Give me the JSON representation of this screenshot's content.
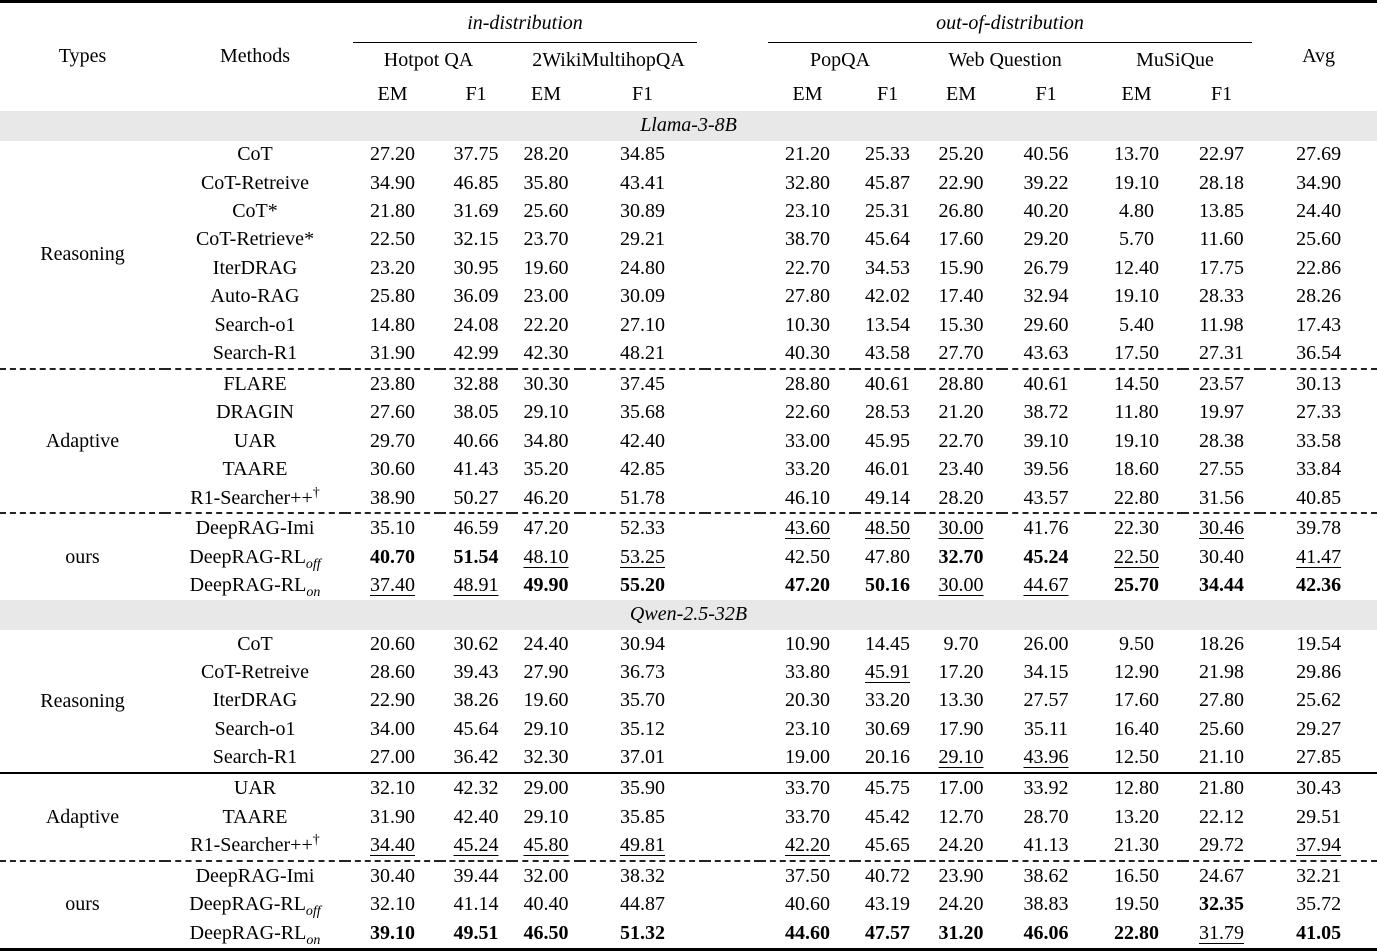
{
  "table": {
    "group_headers": {
      "in": "in-distribution",
      "out": "out-of-distribution"
    },
    "corner": {
      "types": "Types",
      "methods": "Methods",
      "avg": "Avg"
    },
    "datasets": [
      "Hotpot QA",
      "2WikiMultihopQA",
      "PopQA",
      "Web Question",
      "MuSiQue"
    ],
    "metrics": [
      "EM",
      "F1"
    ],
    "band_bg": "#e8e8e8",
    "sections": [
      {
        "model": "Llama-3-8B",
        "groups": [
          {
            "type": "Reasoning",
            "divider": null,
            "rows": [
              {
                "method": {
                  "name": "CoT"
                },
                "values": [
                  "27.20",
                  "37.75",
                  "28.20",
                  "34.85",
                  "21.20",
                  "25.33",
                  "25.20",
                  "40.56",
                  "13.70",
                  "22.97",
                  "27.69"
                ]
              },
              {
                "method": {
                  "name": "CoT-Retreive"
                },
                "values": [
                  "34.90",
                  "46.85",
                  "35.80",
                  "43.41",
                  "32.80",
                  "45.87",
                  "22.90",
                  "39.22",
                  "19.10",
                  "28.18",
                  "34.90"
                ]
              },
              {
                "method": {
                  "name": "CoT*"
                },
                "values": [
                  "21.80",
                  "31.69",
                  "25.60",
                  "30.89",
                  "23.10",
                  "25.31",
                  "26.80",
                  "40.20",
                  "4.80",
                  "13.85",
                  "24.40"
                ]
              },
              {
                "method": {
                  "name": "CoT-Retrieve*"
                },
                "values": [
                  "22.50",
                  "32.15",
                  "23.70",
                  "29.21",
                  "38.70",
                  "45.64",
                  "17.60",
                  "29.20",
                  "5.70",
                  "11.60",
                  "25.60"
                ]
              },
              {
                "method": {
                  "name": "IterDRAG"
                },
                "values": [
                  "23.20",
                  "30.95",
                  "19.60",
                  "24.80",
                  "22.70",
                  "34.53",
                  "15.90",
                  "26.79",
                  "12.40",
                  "17.75",
                  "22.86"
                ]
              },
              {
                "method": {
                  "name": "Auto-RAG"
                },
                "values": [
                  "25.80",
                  "36.09",
                  "23.00",
                  "30.09",
                  "27.80",
                  "42.02",
                  "17.40",
                  "32.94",
                  "19.10",
                  "28.33",
                  "28.26"
                ]
              },
              {
                "method": {
                  "name": "Search-o1"
                },
                "values": [
                  "14.80",
                  "24.08",
                  "22.20",
                  "27.10",
                  "10.30",
                  "13.54",
                  "15.30",
                  "29.60",
                  "5.40",
                  "11.98",
                  "17.43"
                ]
              },
              {
                "method": {
                  "name": "Search-R1"
                },
                "values": [
                  "31.90",
                  "42.99",
                  "42.30",
                  "48.21",
                  "40.30",
                  "43.58",
                  "27.70",
                  "43.63",
                  "17.50",
                  "27.31",
                  "36.54"
                ]
              }
            ]
          },
          {
            "type": "Adaptive",
            "divider": "dashed",
            "rows": [
              {
                "method": {
                  "name": "FLARE"
                },
                "values": [
                  "23.80",
                  "32.88",
                  "30.30",
                  "37.45",
                  "28.80",
                  "40.61",
                  "28.80",
                  "40.61",
                  "14.50",
                  "23.57",
                  "30.13"
                ]
              },
              {
                "method": {
                  "name": "DRAGIN"
                },
                "values": [
                  "27.60",
                  "38.05",
                  "29.10",
                  "35.68",
                  "22.60",
                  "28.53",
                  "21.20",
                  "38.72",
                  "11.80",
                  "19.97",
                  "27.33"
                ]
              },
              {
                "method": {
                  "name": "UAR"
                },
                "values": [
                  "29.70",
                  "40.66",
                  "34.80",
                  "42.40",
                  "33.00",
                  "45.95",
                  "22.70",
                  "39.10",
                  "19.10",
                  "28.38",
                  "33.58"
                ]
              },
              {
                "method": {
                  "name": "TAARE"
                },
                "values": [
                  "30.60",
                  "41.43",
                  "35.20",
                  "42.85",
                  "33.20",
                  "46.01",
                  "23.40",
                  "39.56",
                  "18.60",
                  "27.55",
                  "33.84"
                ]
              },
              {
                "method": {
                  "name": "R1-Searcher++",
                  "sup": "†"
                },
                "values": [
                  "38.90",
                  "50.27",
                  "46.20",
                  "51.78",
                  "46.10",
                  "49.14",
                  "28.20",
                  "43.57",
                  "22.80",
                  "31.56",
                  "40.85"
                ]
              }
            ]
          },
          {
            "type": "ours",
            "divider": "dashed",
            "rows": [
              {
                "method": {
                  "name": "DeepRAG-Imi"
                },
                "values": [
                  "35.10",
                  "46.59",
                  "47.20",
                  "52.33",
                  "43.60",
                  "48.50",
                  "30.00",
                  "41.76",
                  "22.30",
                  "30.46",
                  "39.78"
                ],
                "styles": "----uuu--u-"
              },
              {
                "method": {
                  "name": "DeepRAG-RL",
                  "sub": "off"
                },
                "values": [
                  "40.70",
                  "51.54",
                  "48.10",
                  "53.25",
                  "42.50",
                  "47.80",
                  "32.70",
                  "45.24",
                  "22.50",
                  "30.40",
                  "41.47"
                ],
                "styles": "bbuu--bbu-u"
              },
              {
                "method": {
                  "name": "DeepRAG-RL",
                  "sub": "on"
                },
                "values": [
                  "37.40",
                  "48.91",
                  "49.90",
                  "55.20",
                  "47.20",
                  "50.16",
                  "30.00",
                  "44.67",
                  "25.70",
                  "34.44",
                  "42.36"
                ],
                "styles": "uubbbbuubbb"
              }
            ]
          }
        ]
      },
      {
        "model": "Qwen-2.5-32B",
        "groups": [
          {
            "type": "Reasoning",
            "divider": null,
            "rows": [
              {
                "method": {
                  "name": "CoT"
                },
                "values": [
                  "20.60",
                  "30.62",
                  "24.40",
                  "30.94",
                  "10.90",
                  "14.45",
                  "9.70",
                  "26.00",
                  "9.50",
                  "18.26",
                  "19.54"
                ]
              },
              {
                "method": {
                  "name": "CoT-Retreive"
                },
                "values": [
                  "28.60",
                  "39.43",
                  "27.90",
                  "36.73",
                  "33.80",
                  "45.91",
                  "17.20",
                  "34.15",
                  "12.90",
                  "21.98",
                  "29.86"
                ],
                "styles": "-----u-----"
              },
              {
                "method": {
                  "name": "IterDRAG"
                },
                "values": [
                  "22.90",
                  "38.26",
                  "19.60",
                  "35.70",
                  "20.30",
                  "33.20",
                  "13.30",
                  "27.57",
                  "17.60",
                  "27.80",
                  "25.62"
                ]
              },
              {
                "method": {
                  "name": "Search-o1"
                },
                "values": [
                  "34.00",
                  "45.64",
                  "29.10",
                  "35.12",
                  "23.10",
                  "30.69",
                  "17.90",
                  "35.11",
                  "16.40",
                  "25.60",
                  "29.27"
                ]
              },
              {
                "method": {
                  "name": "Search-R1"
                },
                "values": [
                  "27.00",
                  "36.42",
                  "32.30",
                  "37.01",
                  "19.00",
                  "20.16",
                  "29.10",
                  "43.96",
                  "12.50",
                  "21.10",
                  "27.85"
                ],
                "styles": "------uu---"
              }
            ]
          },
          {
            "type": "Adaptive",
            "divider": "solid",
            "rows": [
              {
                "method": {
                  "name": "UAR"
                },
                "values": [
                  "32.10",
                  "42.32",
                  "29.00",
                  "35.90",
                  "33.70",
                  "45.75",
                  "17.00",
                  "33.92",
                  "12.80",
                  "21.80",
                  "30.43"
                ]
              },
              {
                "method": {
                  "name": "TAARE"
                },
                "values": [
                  "31.90",
                  "42.40",
                  "29.10",
                  "35.85",
                  "33.70",
                  "45.42",
                  "12.70",
                  "28.70",
                  "13.20",
                  "22.12",
                  "29.51"
                ]
              },
              {
                "method": {
                  "name": "R1-Searcher++",
                  "sup": "†"
                },
                "values": [
                  "34.40",
                  "45.24",
                  "45.80",
                  "49.81",
                  "42.20",
                  "45.65",
                  "24.20",
                  "41.13",
                  "21.30",
                  "29.72",
                  "37.94"
                ],
                "styles": "uuuuu-----u"
              }
            ]
          },
          {
            "type": "ours",
            "divider": "dashed",
            "rows": [
              {
                "method": {
                  "name": "DeepRAG-Imi"
                },
                "values": [
                  "30.40",
                  "39.44",
                  "32.00",
                  "38.32",
                  "37.50",
                  "40.72",
                  "23.90",
                  "38.62",
                  "16.50",
                  "24.67",
                  "32.21"
                ]
              },
              {
                "method": {
                  "name": "DeepRAG-RL",
                  "sub": "off"
                },
                "values": [
                  "32.10",
                  "41.14",
                  "40.40",
                  "44.87",
                  "40.60",
                  "43.19",
                  "24.20",
                  "38.83",
                  "19.50",
                  "32.35",
                  "35.72"
                ],
                "styles": "---------b-"
              },
              {
                "method": {
                  "name": "DeepRAG-RL",
                  "sub": "on"
                },
                "values": [
                  "39.10",
                  "49.51",
                  "46.50",
                  "51.32",
                  "44.60",
                  "47.57",
                  "31.20",
                  "46.06",
                  "22.80",
                  "31.79",
                  "41.05"
                ],
                "styles": "bbbbbbbbbub"
              }
            ]
          }
        ]
      }
    ]
  }
}
